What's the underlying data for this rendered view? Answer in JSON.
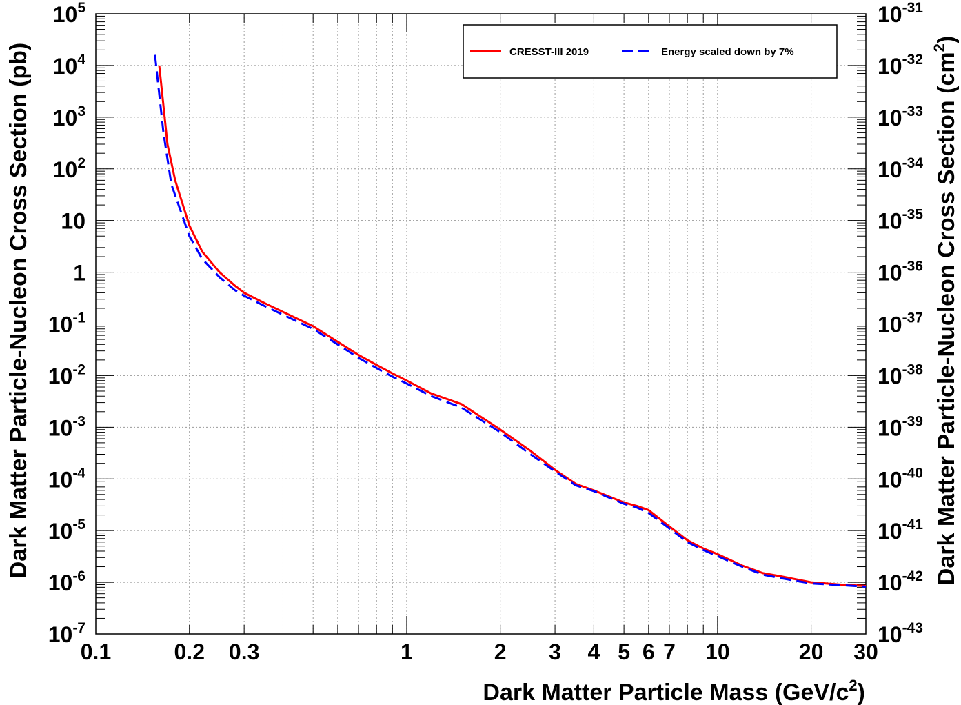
{
  "chart_data": {
    "type": "line",
    "x_scale": "log",
    "y_scale": "log",
    "xlim": [
      0.1,
      30
    ],
    "ylim": [
      1e-07,
      100000.0
    ],
    "y2lim": [
      1e-43,
      1e-31
    ],
    "grid": true,
    "legend_position": "top-right",
    "xlabel": "Dark Matter Particle Mass (GeV/c²)",
    "ylabel": "Dark Matter Particle-Nucleon Cross Section (pb)",
    "y2label": "Dark Matter Particle-Nucleon Cross Section (cm²)",
    "x_tick_labels": [
      "0.1",
      "0.2",
      "0.3",
      "1",
      "2",
      "3",
      "4",
      "5",
      "6",
      "7",
      "10",
      "20",
      "30"
    ],
    "y_tick_labels": [
      {
        "base": "10",
        "exp": "-7"
      },
      {
        "base": "10",
        "exp": "-6"
      },
      {
        "base": "10",
        "exp": "-5"
      },
      {
        "base": "10",
        "exp": "-4"
      },
      {
        "base": "10",
        "exp": "-3"
      },
      {
        "base": "10",
        "exp": "-2"
      },
      {
        "base": "10",
        "exp": "-1"
      },
      {
        "base": "1",
        "exp": ""
      },
      {
        "base": "10",
        "exp": ""
      },
      {
        "base": "10",
        "exp": "2"
      },
      {
        "base": "10",
        "exp": "3"
      },
      {
        "base": "10",
        "exp": "4"
      },
      {
        "base": "10",
        "exp": "5"
      }
    ],
    "y2_tick_labels": [
      {
        "base": "10",
        "exp": "-43"
      },
      {
        "base": "10",
        "exp": "-42"
      },
      {
        "base": "10",
        "exp": "-41"
      },
      {
        "base": "10",
        "exp": "-40"
      },
      {
        "base": "10",
        "exp": "-39"
      },
      {
        "base": "10",
        "exp": "-38"
      },
      {
        "base": "10",
        "exp": "-37"
      },
      {
        "base": "10",
        "exp": "-36"
      },
      {
        "base": "10",
        "exp": "-35"
      },
      {
        "base": "10",
        "exp": "-34"
      },
      {
        "base": "10",
        "exp": "-33"
      },
      {
        "base": "10",
        "exp": "-32"
      },
      {
        "base": "10",
        "exp": "-31"
      }
    ],
    "series": [
      {
        "name": "CRESST-III 2019",
        "color": "#ff0000",
        "style": "solid",
        "x": [
          0.16,
          0.17,
          0.18,
          0.2,
          0.22,
          0.25,
          0.28,
          0.3,
          0.35,
          0.4,
          0.5,
          0.6,
          0.7,
          0.8,
          0.9,
          1.0,
          1.2,
          1.5,
          2.0,
          2.5,
          3.0,
          3.5,
          4.0,
          4.5,
          5.0,
          5.5,
          6.0,
          7.0,
          8.0,
          9.0,
          10.0,
          12.0,
          14.0,
          16.0,
          20.0,
          25.0,
          30.0
        ],
        "y": [
          10000.0,
          300,
          60,
          8,
          2.5,
          1.0,
          0.55,
          0.4,
          0.25,
          0.17,
          0.09,
          0.045,
          0.025,
          0.016,
          0.011,
          0.008,
          0.0045,
          0.0028,
          0.0009,
          0.00035,
          0.00015,
          8e-05,
          6e-05,
          4.5e-05,
          3.5e-05,
          3e-05,
          2.5e-05,
          1.2e-05,
          6.5e-06,
          4.5e-06,
          3.5e-06,
          2.1e-06,
          1.5e-06,
          1.3e-06,
          1e-06,
          9e-07,
          8.5e-07
        ]
      },
      {
        "name": "Energy scaled down by 7%",
        "color": "#0000ff",
        "style": "dashed",
        "x": [
          0.155,
          0.165,
          0.175,
          0.2,
          0.22,
          0.25,
          0.28,
          0.3,
          0.35,
          0.4,
          0.5,
          0.6,
          0.7,
          0.8,
          0.9,
          1.0,
          1.2,
          1.5,
          2.0,
          2.5,
          3.0,
          3.5,
          4.0,
          4.5,
          5.0,
          5.5,
          6.0,
          7.0,
          8.0,
          9.0,
          10.0,
          12.0,
          14.0,
          16.0,
          20.0,
          25.0,
          30.0
        ],
        "y": [
          16000.0,
          500,
          50,
          5,
          1.8,
          0.8,
          0.45,
          0.35,
          0.22,
          0.15,
          0.08,
          0.04,
          0.022,
          0.014,
          0.0095,
          0.007,
          0.004,
          0.0024,
          0.0008,
          0.0003,
          0.00014,
          7.5e-05,
          5.8e-05,
          4.3e-05,
          3.3e-05,
          2.8e-05,
          2.2e-05,
          1.1e-05,
          6e-06,
          4.2e-06,
          3.2e-06,
          2e-06,
          1.4e-06,
          1.2e-06,
          9.5e-07,
          8.8e-07,
          8.2e-07
        ]
      }
    ]
  }
}
